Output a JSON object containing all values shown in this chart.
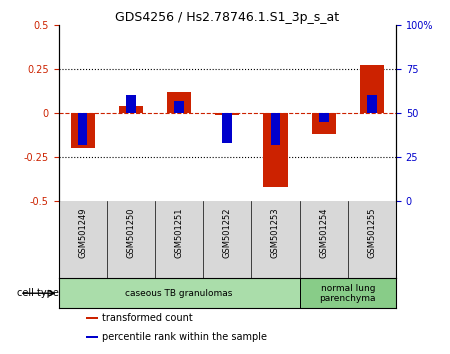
{
  "title": "GDS4256 / Hs2.78746.1.S1_3p_s_at",
  "samples": [
    "GSM501249",
    "GSM501250",
    "GSM501251",
    "GSM501252",
    "GSM501253",
    "GSM501254",
    "GSM501255"
  ],
  "red_values": [
    -0.2,
    0.04,
    0.12,
    -0.01,
    -0.42,
    -0.12,
    0.27
  ],
  "blue_values": [
    -0.18,
    0.1,
    0.07,
    -0.17,
    -0.18,
    -0.05,
    0.1
  ],
  "red_color": "#cc2200",
  "blue_color": "#0000cc",
  "ylim_left": [
    -0.5,
    0.5
  ],
  "ylim_right": [
    0,
    100
  ],
  "yticks_left": [
    -0.5,
    -0.25,
    0,
    0.25,
    0.5
  ],
  "ytick_labels_left": [
    "-0.5",
    "-0.25",
    "0",
    "0.25",
    "0.5"
  ],
  "yticks_right": [
    0,
    25,
    50,
    75,
    100
  ],
  "ytick_labels_right": [
    "0",
    "25",
    "50",
    "75",
    "100%"
  ],
  "dotted_lines": [
    -0.25,
    0.25
  ],
  "cell_type_groups": [
    {
      "label": "caseous TB granulomas",
      "start": 0,
      "end": 5,
      "color": "#aaddaa"
    },
    {
      "label": "normal lung\nparenchyma",
      "start": 5,
      "end": 7,
      "color": "#88cc88"
    }
  ],
  "cell_type_label": "cell type",
  "legend_red": "transformed count",
  "legend_blue": "percentile rank within the sample",
  "red_bar_width": 0.5,
  "blue_bar_width": 0.2,
  "bg_color": "#d8d8d8",
  "plot_bg": "#ffffff",
  "green_light": "#bbeebb",
  "green_dark": "#88cc88"
}
